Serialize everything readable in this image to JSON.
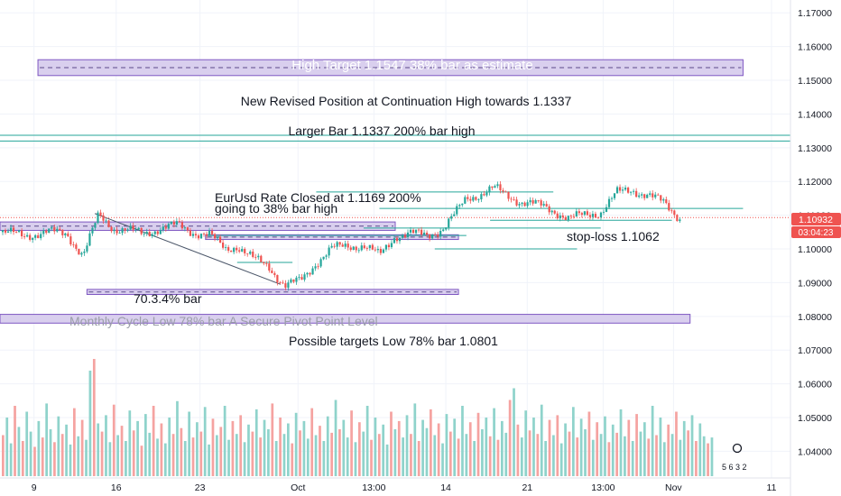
{
  "colors": {
    "up": "#26a69a",
    "down": "#ef5350",
    "vol_up": "#8fd3cb",
    "vol_down": "#f5a3a1",
    "zone_fill": "#d9cfee",
    "zone_border": "#7e57c2",
    "line_teal": "#26a69a",
    "dotted_red": "#ef5350",
    "price_badge": "#ef5350",
    "grid": "#f0f3fa",
    "axis_text": "#131722"
  },
  "chart_data": {
    "type": "candlestick",
    "ylim": [
      1.0353,
      1.1722
    ],
    "y_ticks": [
      "1.17000",
      "1.16000",
      "1.15000",
      "1.14000",
      "1.13000",
      "1.12000",
      "1.11000",
      "1.10000",
      "1.09000",
      "1.08000",
      "1.07000",
      "1.06000",
      "1.05000",
      "1.04000"
    ],
    "x_ticks": [
      "9",
      "16",
      "23",
      "Oct",
      "13:00",
      "14",
      "21",
      "13:00",
      "Nov",
      "11"
    ],
    "current_price": "1.10932",
    "countdown": "03:04:23",
    "price_path": [
      [
        0.0,
        1.105
      ],
      [
        0.03,
        1.104
      ],
      [
        0.06,
        1.105
      ],
      [
        0.085,
        1.1045
      ],
      [
        0.105,
        1.098
      ],
      [
        0.125,
        1.11
      ],
      [
        0.145,
        1.106
      ],
      [
        0.16,
        1.1055
      ],
      [
        0.18,
        1.1045
      ],
      [
        0.2,
        1.106
      ],
      [
        0.225,
        1.107
      ],
      [
        0.245,
        1.105
      ],
      [
        0.265,
        1.104
      ],
      [
        0.285,
        1.1
      ],
      [
        0.3,
        1.101
      ],
      [
        0.32,
        1.097
      ],
      [
        0.34,
        1.095
      ],
      [
        0.36,
        1.089
      ],
      [
        0.38,
        1.0905
      ],
      [
        0.4,
        1.096
      ],
      [
        0.42,
        1.1
      ],
      [
        0.44,
        1.101
      ],
      [
        0.46,
        1.101
      ],
      [
        0.48,
        1.098
      ],
      [
        0.5,
        1.104
      ],
      [
        0.52,
        1.1045
      ],
      [
        0.54,
        1.104
      ],
      [
        0.56,
        1.106
      ],
      [
        0.575,
        1.11
      ],
      [
        0.59,
        1.115
      ],
      [
        0.61,
        1.1165
      ],
      [
        0.625,
        1.118
      ],
      [
        0.64,
        1.116
      ],
      [
        0.66,
        1.114
      ],
      [
        0.68,
        1.113
      ],
      [
        0.7,
        1.1115
      ],
      [
        0.72,
        1.109
      ],
      [
        0.74,
        1.11
      ],
      [
        0.76,
        1.111
      ],
      [
        0.78,
        1.1165
      ],
      [
        0.8,
        1.1175
      ],
      [
        0.82,
        1.116
      ],
      [
        0.84,
        1.1135
      ],
      [
        0.86,
        1.1093
      ]
    ],
    "horizontal_lines": [
      {
        "price": 1.1337,
        "extent": [
          0.0,
          1.0
        ]
      },
      {
        "price": 1.132,
        "extent": [
          0.0,
          1.0
        ]
      },
      {
        "price": 1.1169,
        "extent": [
          0.4,
          0.7
        ]
      },
      {
        "price": 1.112,
        "extent": [
          0.48,
          0.94
        ]
      },
      {
        "price": 1.1085,
        "extent": [
          0.62,
          0.85
        ]
      },
      {
        "price": 1.1062,
        "extent": [
          0.46,
          0.76
        ]
      },
      {
        "price": 1.104,
        "extent": [
          0.26,
          0.59
        ]
      },
      {
        "price": 1.1,
        "extent": [
          0.55,
          0.73
        ]
      },
      {
        "price": 1.096,
        "extent": [
          0.3,
          0.37
        ]
      }
    ],
    "zones": [
      {
        "top": 1.1561,
        "bottom": 1.1514,
        "extent": [
          0.048,
          0.94
        ],
        "dashed_mid": true
      },
      {
        "top": 1.108,
        "bottom": 1.1055,
        "extent": [
          0.0,
          0.5
        ],
        "dashed_mid": true
      },
      {
        "top": 1.1042,
        "bottom": 1.1028,
        "extent": [
          0.26,
          0.58
        ],
        "dashed_mid": true
      },
      {
        "top": 1.088,
        "bottom": 1.0865,
        "extent": [
          0.11,
          0.58
        ],
        "dashed_mid": true
      },
      {
        "top": 1.0806,
        "bottom": 1.078,
        "extent": [
          0.0,
          0.873
        ],
        "dashed_mid": false
      }
    ],
    "trend_line": {
      "from": [
        0.12,
        1.1105
      ],
      "to": [
        0.355,
        1.0895
      ]
    },
    "dotted_price_line": 1.1093,
    "annotations": {
      "high_target": "High Target 1.1547 38% bar as estimate",
      "revised_position": "New Revised Position at Continuation High towards 1.1337",
      "larger_bar": "Larger Bar 1.1337 200% bar high",
      "closed_line1": "EurUsd Rate Closed at 1.1169 200%",
      "closed_line2": "going to 38% bar high",
      "stop_loss": "stop-loss 1.1062",
      "pct_label": "70.3.4% bar",
      "monthly_cycle": "Monthly Cycle Low 78% bar A Secure Pivot Point Level",
      "possible_targets": "Possible targets Low 78% bar 1.0801"
    },
    "volume_profile": [
      0.35,
      0.5,
      0.28,
      0.6,
      0.42,
      0.3,
      0.55,
      0.38,
      0.25,
      0.47,
      0.33,
      0.62,
      0.4,
      0.29,
      0.51,
      0.36,
      0.44,
      0.27,
      0.58,
      0.34,
      0.48,
      0.31,
      0.9,
      1.0,
      0.45,
      0.38,
      0.52,
      0.29,
      0.61,
      0.35,
      0.43,
      0.3,
      0.56,
      0.39,
      0.47,
      0.26,
      0.53,
      0.37,
      0.6,
      0.32,
      0.45,
      0.28,
      0.5,
      0.36,
      0.64,
      0.41,
      0.3,
      0.55,
      0.33,
      0.46,
      0.38,
      0.59,
      0.27,
      0.49,
      0.35,
      0.42,
      0.6,
      0.31,
      0.47,
      0.36,
      0.52,
      0.29,
      0.44,
      0.38,
      0.57,
      0.33,
      0.48,
      0.4,
      0.62,
      0.3,
      0.5,
      0.36,
      0.45,
      0.28,
      0.54,
      0.39,
      0.47,
      0.32,
      0.58,
      0.35,
      0.43,
      0.3,
      0.51,
      0.37,
      0.65,
      0.4,
      0.48,
      0.33,
      0.56,
      0.29,
      0.46,
      0.38,
      0.6,
      0.31,
      0.5,
      0.36,
      0.44,
      0.27,
      0.55,
      0.4,
      0.47,
      0.33,
      0.52,
      0.36,
      0.62,
      0.3,
      0.48,
      0.41,
      0.57,
      0.35,
      0.45,
      0.28,
      0.53,
      0.38,
      0.49,
      0.32,
      0.6,
      0.36,
      0.46,
      0.3,
      0.54,
      0.4,
      0.5,
      0.34,
      0.58,
      0.31,
      0.47,
      0.37,
      0.65,
      0.75,
      0.44,
      0.33,
      0.56,
      0.39,
      0.5,
      0.36,
      0.61,
      0.3,
      0.48,
      0.35,
      0.52,
      0.28,
      0.45,
      0.38,
      0.59,
      0.33,
      0.49,
      0.4,
      0.55,
      0.31,
      0.46,
      0.36,
      0.51,
      0.29,
      0.44,
      0.37,
      0.57,
      0.34,
      0.48,
      0.3,
      0.53,
      0.38,
      0.46,
      0.32,
      0.6,
      0.35,
      0.5,
      0.29,
      0.44,
      0.36,
      0.55,
      0.31,
      0.47,
      0.39,
      0.52,
      0.3,
      0.45,
      0.34,
      0.28,
      0.33
    ],
    "watermark": "5 6 3 2"
  }
}
